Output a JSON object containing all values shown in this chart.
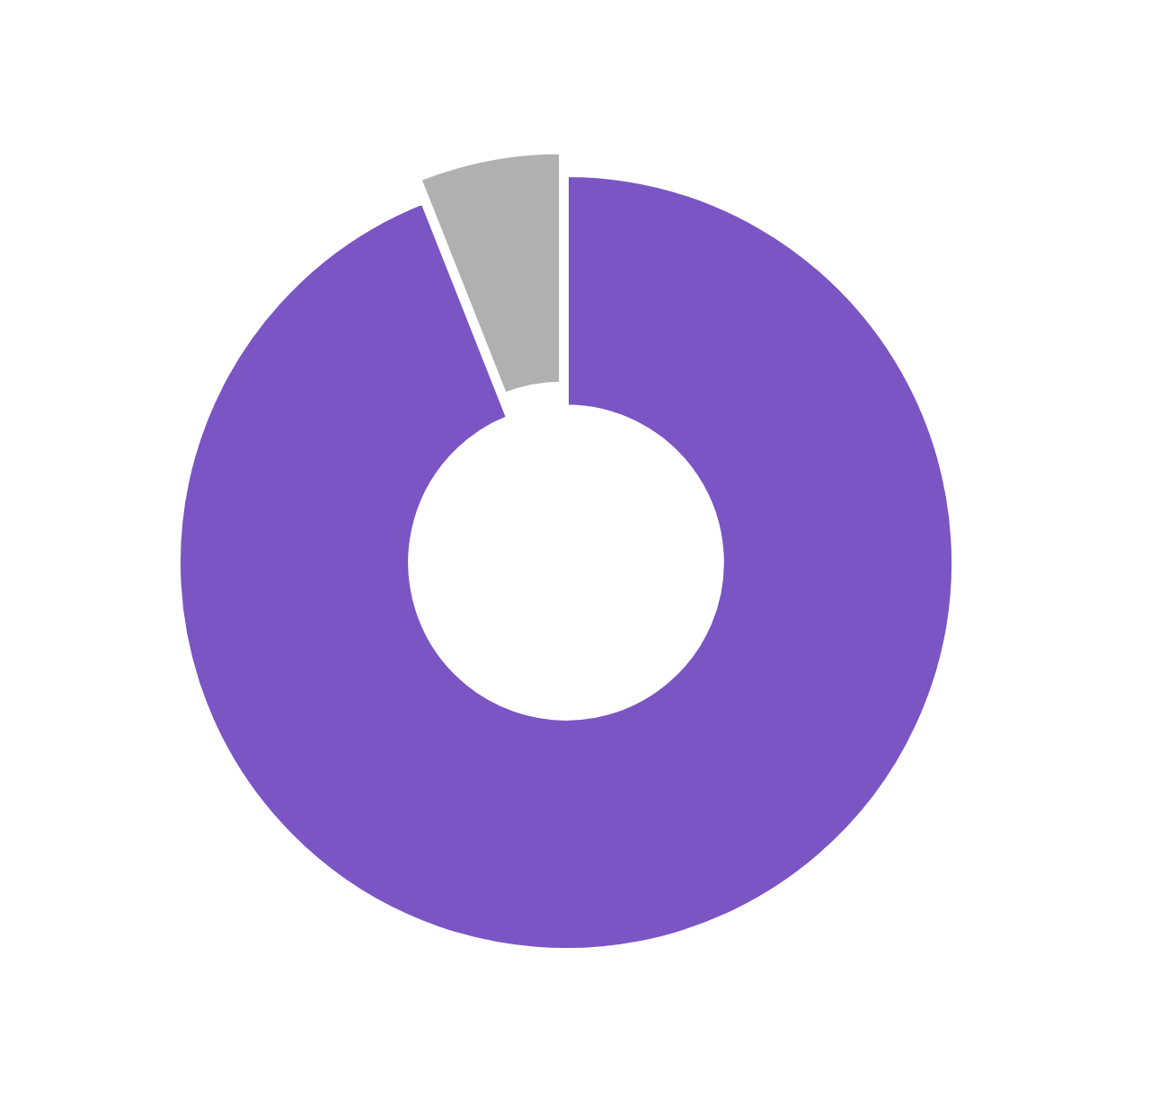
{
  "chart_data": {
    "type": "donut",
    "categories": [
      null,
      null
    ],
    "values": [
      94,
      6
    ],
    "colors": [
      "#7b55c4",
      "#b0b0b0"
    ]
  }
}
